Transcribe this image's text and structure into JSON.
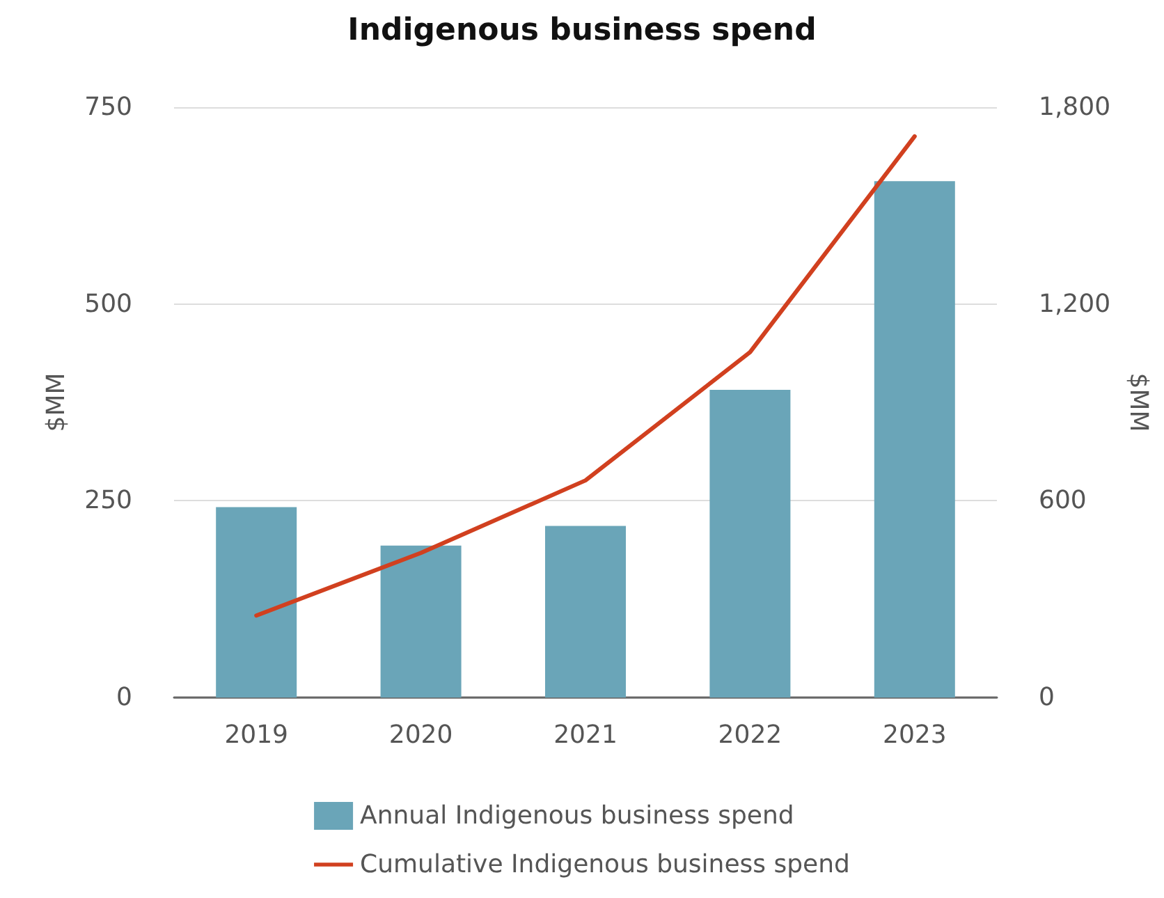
{
  "chart_data": {
    "type": "bar",
    "title": "Indigenous business spend",
    "ylabel": "$MM",
    "y2label": "$MM",
    "categories": [
      "2019",
      "2020",
      "2021",
      "2022",
      "2023"
    ],
    "series": [
      {
        "name": "Annual Indigenous business spend",
        "color": "#6aa5b8",
        "values": [
          242,
          193,
          218,
          391,
          656
        ]
      },
      {
        "name": "Cumulative Indigenous business spend",
        "type": "line",
        "axis": "y2",
        "color": "#d1401f",
        "values": [
          250,
          441,
          662,
          1053,
          1711
        ]
      }
    ],
    "ylim": [
      0,
      750
    ],
    "yticks": [
      0,
      250,
      500,
      750
    ],
    "y2lim": [
      0,
      1800
    ],
    "y2ticks": [
      0,
      600,
      {
        "value": 1200,
        "label": "1,200"
      },
      {
        "value": 1800,
        "label": "1,800"
      }
    ],
    "grid": "y",
    "legend": "bottom",
    "marker": "none"
  }
}
